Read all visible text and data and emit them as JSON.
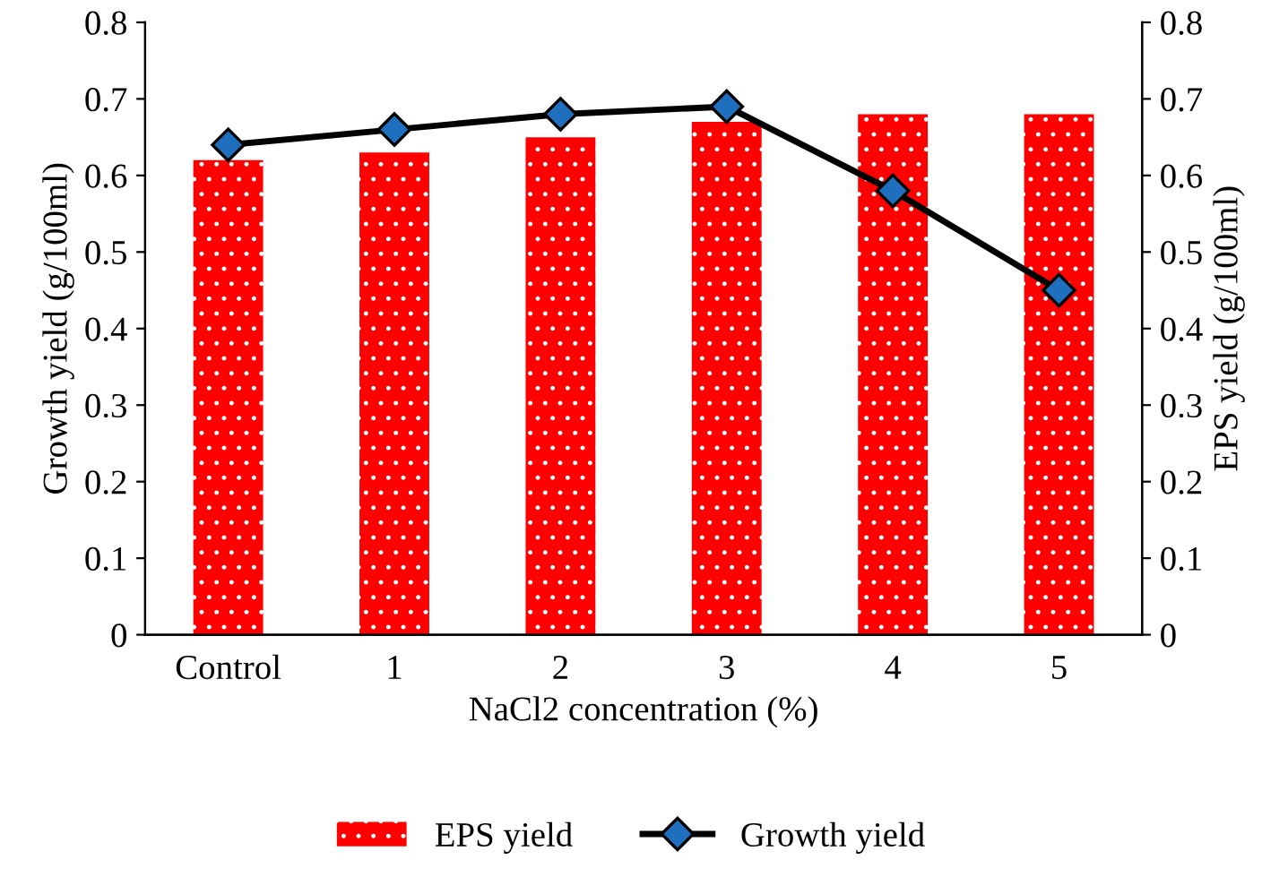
{
  "chart_data": {
    "type": "bar",
    "xlabel": "NaCl2 concentration (%)",
    "ylabel": "Growth yield (g/100ml)",
    "y2label": "EPS yield (g/100ml)",
    "categories": [
      "Control",
      "1",
      "2",
      "3",
      "4",
      "5"
    ],
    "series": [
      {
        "name": "EPS yield",
        "axis": "y2",
        "color": "#ff0000",
        "values": [
          0.62,
          0.63,
          0.65,
          0.67,
          0.68,
          0.68
        ]
      },
      {
        "name": "Growth yield",
        "type": "line",
        "color": "#000000",
        "values": [
          0.64,
          0.66,
          0.68,
          0.69,
          0.58,
          0.45
        ]
      }
    ],
    "marker": "diamond",
    "ylim": [
      0,
      0.8
    ],
    "yticks": [
      0,
      0.1,
      0.2,
      0.3,
      0.4,
      0.5,
      0.6,
      0.7,
      0.8
    ],
    "y2lim": [
      0,
      0.8
    ],
    "y2ticks": [
      0,
      0.1,
      0.2,
      0.3,
      0.4,
      0.5,
      0.6,
      0.7,
      0.8
    ],
    "legend": "bottom",
    "grid": false
  }
}
